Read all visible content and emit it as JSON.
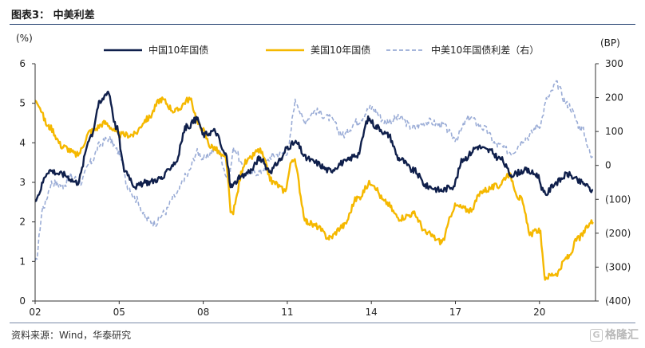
{
  "header": {
    "title": "图表3：  中美利差"
  },
  "footer": {
    "source": "资料来源：Wind，华泰研究",
    "watermark_mark": "G",
    "watermark": "格隆汇"
  },
  "chart_data": {
    "type": "line",
    "left_axis_unit": "(%)",
    "right_axis_unit": "(BP)",
    "ylim_left": [
      0,
      6
    ],
    "ylim_right": [
      -400,
      300
    ],
    "yticks_left": [
      0,
      1,
      2,
      3,
      4,
      5,
      6
    ],
    "yticks_right": [
      300,
      200,
      100,
      0,
      -100,
      -200,
      -300,
      -400
    ],
    "yticks_right_labels": [
      "300",
      "200",
      "100",
      "0",
      "(100)",
      "(200)",
      "(300)",
      "(400)"
    ],
    "xlim": [
      2002.0,
      2022.0
    ],
    "xticks": [
      2002,
      2005,
      2008,
      2011,
      2014,
      2017,
      2020
    ],
    "xtick_labels": [
      "02",
      "05",
      "08",
      "11",
      "14",
      "17",
      "20"
    ],
    "legend_position": "top",
    "series": [
      {
        "name": "中国10年国债",
        "axis": "left",
        "color": "#0f1f4b",
        "style": "solid",
        "x": [
          2002.0,
          2002.5,
          2003.0,
          2003.5,
          2004.0,
          2004.3,
          2004.6,
          2004.9,
          2005.2,
          2005.6,
          2006.0,
          2006.5,
          2007.0,
          2007.4,
          2007.8,
          2008.0,
          2008.4,
          2008.8,
          2009.0,
          2009.3,
          2009.7,
          2010.0,
          2010.4,
          2010.8,
          2011.0,
          2011.3,
          2011.7,
          2012.0,
          2012.5,
          2013.0,
          2013.5,
          2013.9,
          2014.2,
          2014.6,
          2015.0,
          2015.5,
          2016.0,
          2016.5,
          2016.9,
          2017.3,
          2017.8,
          2018.2,
          2018.6,
          2019.0,
          2019.5,
          2019.9,
          2020.2,
          2020.6,
          2021.0,
          2021.5,
          2021.9
        ],
        "y": [
          2.6,
          3.3,
          3.2,
          3.0,
          4.2,
          5.0,
          5.3,
          4.4,
          3.3,
          2.9,
          3.0,
          3.1,
          3.5,
          4.4,
          4.6,
          4.2,
          4.3,
          3.7,
          2.9,
          3.1,
          3.3,
          3.6,
          3.3,
          3.6,
          3.9,
          4.0,
          3.6,
          3.5,
          3.3,
          3.5,
          3.7,
          4.6,
          4.4,
          4.2,
          3.6,
          3.3,
          2.9,
          2.8,
          2.9,
          3.6,
          3.9,
          3.8,
          3.6,
          3.2,
          3.3,
          3.2,
          2.7,
          3.0,
          3.2,
          3.0,
          2.8
        ]
      },
      {
        "name": "美国10年国债",
        "axis": "left",
        "color": "#f5b800",
        "style": "solid",
        "x": [
          2002.0,
          2002.5,
          2003.0,
          2003.5,
          2004.0,
          2004.5,
          2005.0,
          2005.5,
          2006.0,
          2006.5,
          2007.0,
          2007.5,
          2007.9,
          2008.3,
          2008.8,
          2009.0,
          2009.5,
          2010.0,
          2010.5,
          2010.9,
          2011.2,
          2011.7,
          2012.0,
          2012.5,
          2013.0,
          2013.5,
          2014.0,
          2014.5,
          2015.0,
          2015.5,
          2016.0,
          2016.5,
          2017.0,
          2017.5,
          2018.0,
          2018.5,
          2018.9,
          2019.3,
          2019.7,
          2020.0,
          2020.2,
          2020.6,
          2021.0,
          2021.4,
          2021.9
        ],
        "y": [
          5.1,
          4.4,
          3.9,
          3.7,
          4.3,
          4.5,
          4.2,
          4.2,
          4.6,
          5.1,
          4.8,
          5.1,
          4.4,
          3.9,
          3.6,
          2.2,
          3.5,
          3.8,
          3.0,
          2.8,
          3.6,
          2.0,
          1.9,
          1.6,
          1.9,
          2.6,
          3.0,
          2.5,
          2.1,
          2.2,
          1.7,
          1.5,
          2.4,
          2.3,
          2.8,
          2.9,
          3.2,
          2.6,
          1.7,
          1.8,
          0.6,
          0.7,
          1.1,
          1.6,
          2.0
        ]
      },
      {
        "name": "中美10年国债利差（右）",
        "axis": "right",
        "color": "#9aacd6",
        "style": "dashed",
        "x": [
          2002.0,
          2002.3,
          2002.6,
          2003.0,
          2003.3,
          2003.6,
          2004.0,
          2004.3,
          2004.6,
          2005.0,
          2005.3,
          2005.6,
          2006.0,
          2006.3,
          2006.6,
          2007.0,
          2007.4,
          2007.8,
          2008.0,
          2008.5,
          2008.9,
          2009.1,
          2009.5,
          2010.0,
          2010.5,
          2011.0,
          2011.3,
          2011.6,
          2012.0,
          2012.5,
          2013.0,
          2013.5,
          2014.0,
          2014.5,
          2015.0,
          2015.5,
          2016.0,
          2016.5,
          2017.0,
          2017.5,
          2018.0,
          2018.5,
          2019.0,
          2019.5,
          2020.0,
          2020.3,
          2020.6,
          2021.0,
          2021.5,
          2021.9
        ],
        "y": [
          -290,
          -120,
          -50,
          -60,
          -30,
          -50,
          10,
          60,
          80,
          40,
          -60,
          -100,
          -160,
          -170,
          -140,
          -90,
          -30,
          40,
          20,
          50,
          -40,
          50,
          -20,
          -20,
          30,
          40,
          190,
          130,
          160,
          140,
          90,
          130,
          170,
          130,
          140,
          110,
          130,
          120,
          80,
          140,
          110,
          60,
          40,
          80,
          120,
          200,
          240,
          180,
          110,
          20
        ]
      }
    ]
  }
}
